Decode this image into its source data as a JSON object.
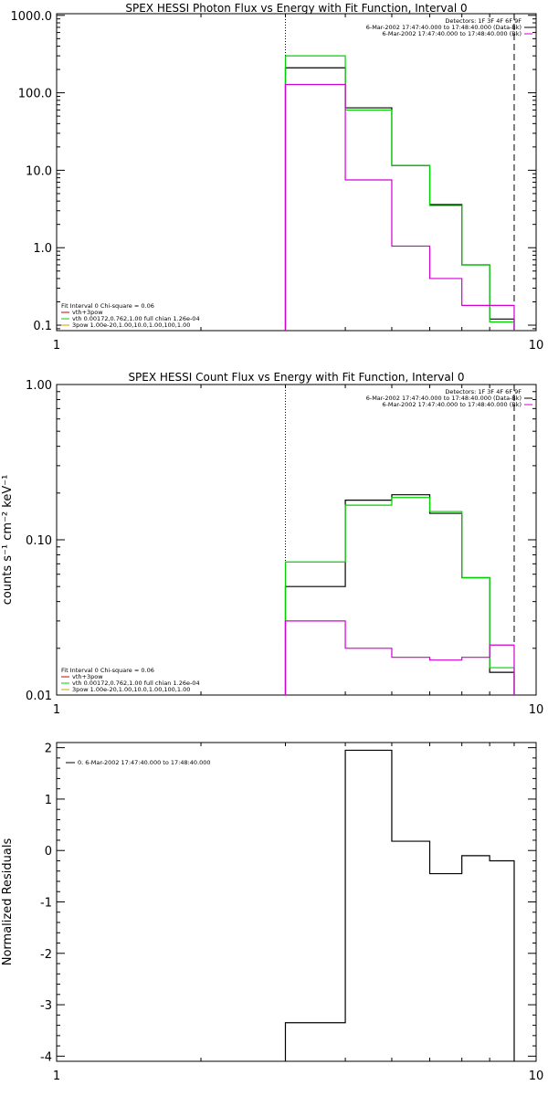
{
  "chart_data": [
    {
      "id": "photon",
      "type": "line",
      "title": "SPEX HESSI Photon Flux vs Energy with Fit Function, Interval 0",
      "xlabel": "",
      "ylabel": "",
      "xscale": "log",
      "yscale": "log",
      "xlim": [
        1,
        10
      ],
      "ylim": [
        0.085,
        1050
      ],
      "x_ticks": [
        1,
        10
      ],
      "x_tick_labels": [
        "1",
        "10"
      ],
      "y_ticks": [
        0.1,
        1,
        10,
        100,
        1000
      ],
      "y_tick_labels": [
        "0.1",
        "1.0",
        "10.0",
        "100.0",
        "1000.0"
      ],
      "vlines": [
        {
          "x": 3.0,
          "style": "dotted",
          "color": "#000000"
        },
        {
          "x": 9.0,
          "style": "dashed",
          "color": "#000000"
        }
      ],
      "bin_edges": [
        3.0,
        4.0,
        5.0,
        6.0,
        7.0,
        8.0,
        9.0
      ],
      "series": [
        {
          "color": "#000000",
          "values": [
            210,
            64,
            11.5,
            3.6,
            0.6,
            0.12
          ]
        },
        {
          "color": "#00d000",
          "values": [
            300,
            60,
            11.5,
            3.5,
            0.6,
            0.11
          ]
        },
        {
          "color": "#d000d0",
          "values": [
            128,
            7.5,
            1.05,
            0.4,
            0.18,
            0.18
          ]
        }
      ],
      "legend_top_right": [
        {
          "text": "Detectors: 1F 3F 4F 6F 9F",
          "color": ""
        },
        {
          "text": "6-Mar-2002 17:47:40.000 to 17:48:40.000 (Data-Bk)",
          "color": "#000000"
        },
        {
          "text": "6-Mar-2002 17:47:40.000 to 17:48:40.000 (Bk)",
          "color": "#d000d0"
        }
      ],
      "legend_bottom_left": [
        {
          "text": "Fit Interval 0   Chi-square = 0.06",
          "color": ""
        },
        {
          "text": "vth+3pow",
          "color": "#d00000"
        },
        {
          "text": "vth 0.00172,0.762,1.00  full chian 1.26e-04",
          "color": "#00d000"
        },
        {
          "text": "3pow 1.00e-20,1.00,10.0,1.00,100,1.00",
          "color": "#d0a000"
        }
      ]
    },
    {
      "id": "count",
      "type": "line",
      "title": "SPEX HESSI Count Flux vs Energy with Fit Function, Interval 0",
      "xlabel": "",
      "ylabel": "counts s⁻¹ cm⁻² keV⁻¹",
      "xscale": "log",
      "yscale": "log",
      "xlim": [
        1,
        10
      ],
      "ylim": [
        0.01,
        1.0
      ],
      "x_ticks": [
        1,
        10
      ],
      "x_tick_labels": [
        "1",
        "10"
      ],
      "y_ticks": [
        0.01,
        0.1,
        1.0
      ],
      "y_tick_labels": [
        "0.01",
        "0.10",
        "1.00"
      ],
      "vlines": [
        {
          "x": 3.0,
          "style": "dotted",
          "color": "#000000"
        },
        {
          "x": 9.0,
          "style": "dashed",
          "color": "#000000"
        }
      ],
      "bin_edges": [
        3.0,
        4.0,
        5.0,
        6.0,
        7.0,
        8.0,
        9.0
      ],
      "series": [
        {
          "color": "#000000",
          "values": [
            0.05,
            0.18,
            0.195,
            0.148,
            0.057,
            0.014
          ]
        },
        {
          "color": "#00d000",
          "values": [
            0.072,
            0.167,
            0.187,
            0.152,
            0.057,
            0.015
          ]
        },
        {
          "color": "#d000d0",
          "values": [
            0.03,
            0.02,
            0.0175,
            0.0168,
            0.0175,
            0.021
          ]
        }
      ],
      "legend_top_right": [
        {
          "text": "Detectors: 1F 3F 4F 6F 9F",
          "color": ""
        },
        {
          "text": "6-Mar-2002 17:47:40.000 to 17:48:40.000 (Data-Bk)",
          "color": "#000000"
        },
        {
          "text": "6-Mar-2002 17:47:40.000 to 17:48:40.000 (Bk)",
          "color": "#d000d0"
        }
      ],
      "legend_bottom_left": [
        {
          "text": "Fit Interval 0   Chi-square = 0.06",
          "color": ""
        },
        {
          "text": "vth+3pow",
          "color": "#d00000"
        },
        {
          "text": "vth 0.00172,0.762,1.00  full chian 1.26e-04",
          "color": "#00d000"
        },
        {
          "text": "3pow 1.00e-20,1.00,10.0,1.00,100,1.00",
          "color": "#d0a000"
        }
      ]
    },
    {
      "id": "residuals",
      "type": "line",
      "title": "",
      "xlabel": "",
      "ylabel": "Normalized Residuals",
      "xscale": "log",
      "yscale": "linear",
      "xlim": [
        1,
        10
      ],
      "ylim": [
        -4.1,
        2.1
      ],
      "x_ticks": [
        1,
        10
      ],
      "x_tick_labels": [
        "1",
        "10"
      ],
      "y_ticks": [
        -4,
        -3,
        -2,
        -1,
        0,
        1,
        2
      ],
      "y_tick_labels": [
        "-4",
        "-3",
        "-2",
        "-1",
        "0",
        "1",
        "2"
      ],
      "vlines": [],
      "bin_edges": [
        3.0,
        4.0,
        5.0,
        6.0,
        7.0,
        8.0,
        9.0
      ],
      "series": [
        {
          "color": "#000000",
          "values": [
            -3.35,
            1.95,
            0.18,
            -0.45,
            -0.1,
            -0.2
          ]
        }
      ],
      "legend_top_right": [],
      "legend_bottom_left": [],
      "legend_top_left": [
        {
          "text": "0. 6-Mar-2002 17:47:40.000 to 17:48:40.000",
          "color": "#000000"
        }
      ]
    }
  ]
}
